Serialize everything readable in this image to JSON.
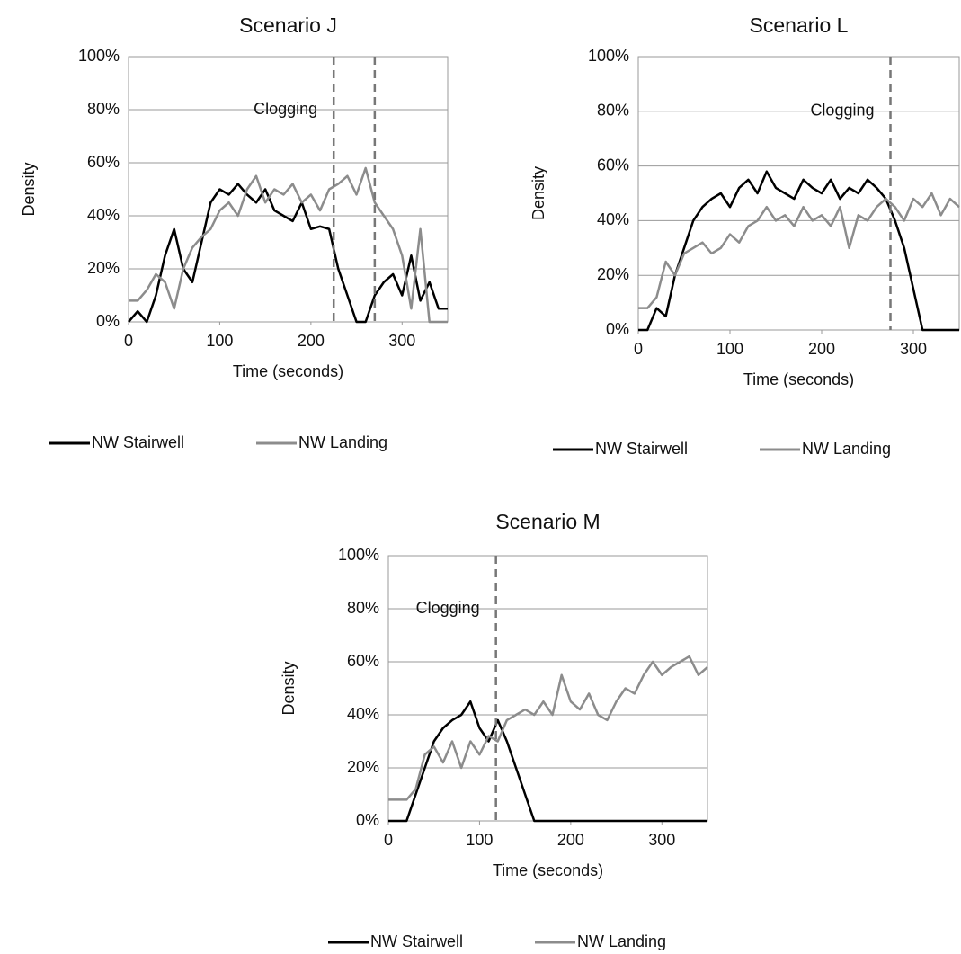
{
  "chart_data": [
    {
      "type": "line",
      "title": "Scenario J",
      "x_label": "Time (seconds)",
      "y_label": "Density",
      "x": [
        0,
        10,
        20,
        30,
        40,
        50,
        60,
        70,
        80,
        90,
        100,
        110,
        120,
        130,
        140,
        150,
        160,
        170,
        180,
        190,
        200,
        210,
        220,
        230,
        240,
        250,
        260,
        270,
        280,
        290,
        300,
        310,
        320,
        330,
        340,
        350
      ],
      "series": [
        {
          "name": "NW Stairwell",
          "color": "#000000",
          "values": [
            0,
            4,
            0,
            10,
            25,
            35,
            20,
            15,
            30,
            45,
            50,
            48,
            52,
            48,
            45,
            50,
            42,
            40,
            38,
            45,
            35,
            36,
            35,
            20,
            10,
            0,
            0,
            10,
            15,
            18,
            10,
            25,
            8,
            15,
            5,
            5
          ]
        },
        {
          "name": "NW Landing",
          "color": "#8c8c8c",
          "values": [
            8,
            8,
            12,
            18,
            15,
            5,
            20,
            28,
            32,
            35,
            42,
            45,
            40,
            50,
            55,
            45,
            50,
            48,
            52,
            45,
            48,
            42,
            50,
            52,
            55,
            48,
            58,
            45,
            40,
            35,
            25,
            5,
            35,
            0,
            0,
            0
          ]
        }
      ],
      "xlim": [
        0,
        350
      ],
      "xticks": [
        0,
        100,
        200,
        300
      ],
      "ylim": [
        0,
        100
      ],
      "yticks": [
        {
          "value": 0,
          "label": "0%"
        },
        {
          "value": 20,
          "label": "20%"
        },
        {
          "value": 40,
          "label": "40%"
        },
        {
          "value": 60,
          "label": "60%"
        },
        {
          "value": 80,
          "label": "80%"
        },
        {
          "value": 100,
          "label": "100%"
        }
      ],
      "vlines": [
        225,
        270
      ],
      "annotation": "Clogging",
      "grid": true,
      "legend": "bottom"
    },
    {
      "type": "line",
      "title": "Scenario L",
      "x_label": "Time (seconds)",
      "y_label": "Density",
      "x": [
        0,
        10,
        20,
        30,
        40,
        50,
        60,
        70,
        80,
        90,
        100,
        110,
        120,
        130,
        140,
        150,
        160,
        170,
        180,
        190,
        200,
        210,
        220,
        230,
        240,
        250,
        260,
        270,
        280,
        290,
        300,
        310,
        320,
        330,
        340,
        350
      ],
      "series": [
        {
          "name": "NW Stairwell",
          "color": "#000000",
          "values": [
            0,
            0,
            8,
            5,
            20,
            30,
            40,
            45,
            48,
            50,
            45,
            52,
            55,
            50,
            58,
            52,
            50,
            48,
            55,
            52,
            50,
            55,
            48,
            52,
            50,
            55,
            52,
            48,
            40,
            30,
            15,
            0,
            0,
            0,
            0,
            0
          ]
        },
        {
          "name": "NW Landing",
          "color": "#8c8c8c",
          "values": [
            8,
            8,
            12,
            25,
            20,
            28,
            30,
            32,
            28,
            30,
            35,
            32,
            38,
            40,
            45,
            40,
            42,
            38,
            45,
            40,
            42,
            38,
            45,
            30,
            42,
            40,
            45,
            48,
            45,
            40,
            48,
            45,
            50,
            42,
            48,
            45
          ]
        }
      ],
      "xlim": [
        0,
        350
      ],
      "xticks": [
        0,
        100,
        200,
        300
      ],
      "ylim": [
        0,
        100
      ],
      "yticks": [
        {
          "value": 0,
          "label": "0%"
        },
        {
          "value": 20,
          "label": "20%"
        },
        {
          "value": 40,
          "label": "40%"
        },
        {
          "value": 60,
          "label": "60%"
        },
        {
          "value": 80,
          "label": "80%"
        },
        {
          "value": 100,
          "label": "100%"
        }
      ],
      "vlines": [
        275
      ],
      "annotation": "Clogging",
      "grid": true,
      "legend": "bottom"
    },
    {
      "type": "line",
      "title": "Scenario M",
      "x_label": "Time (seconds)",
      "y_label": "Density",
      "x": [
        0,
        10,
        20,
        30,
        40,
        50,
        60,
        70,
        80,
        90,
        100,
        110,
        120,
        130,
        140,
        150,
        160,
        170,
        180,
        190,
        200,
        210,
        220,
        230,
        240,
        250,
        260,
        270,
        280,
        290,
        300,
        310,
        320,
        330,
        340,
        350
      ],
      "series": [
        {
          "name": "NW Stairwell",
          "color": "#000000",
          "values": [
            0,
            0,
            0,
            10,
            20,
            30,
            35,
            38,
            40,
            45,
            35,
            30,
            38,
            30,
            20,
            10,
            0,
            0,
            0,
            0,
            0,
            0,
            0,
            0,
            0,
            0,
            0,
            0,
            0,
            0,
            0,
            0,
            0,
            0,
            0,
            0
          ]
        },
        {
          "name": "NW Landing",
          "color": "#8c8c8c",
          "values": [
            8,
            8,
            8,
            12,
            25,
            28,
            22,
            30,
            20,
            30,
            25,
            32,
            30,
            38,
            40,
            42,
            40,
            45,
            40,
            55,
            45,
            42,
            48,
            40,
            38,
            45,
            50,
            48,
            55,
            60,
            55,
            58,
            60,
            62,
            55,
            58
          ]
        }
      ],
      "xlim": [
        0,
        350
      ],
      "xticks": [
        0,
        100,
        200,
        300
      ],
      "ylim": [
        0,
        100
      ],
      "yticks": [
        {
          "value": 0,
          "label": "0%"
        },
        {
          "value": 20,
          "label": "20%"
        },
        {
          "value": 40,
          "label": "40%"
        },
        {
          "value": 60,
          "label": "60%"
        },
        {
          "value": 80,
          "label": "80%"
        },
        {
          "value": 100,
          "label": "100%"
        }
      ],
      "vlines": [
        118
      ],
      "annotation": "Clogging",
      "grid": true,
      "legend": "bottom"
    }
  ]
}
